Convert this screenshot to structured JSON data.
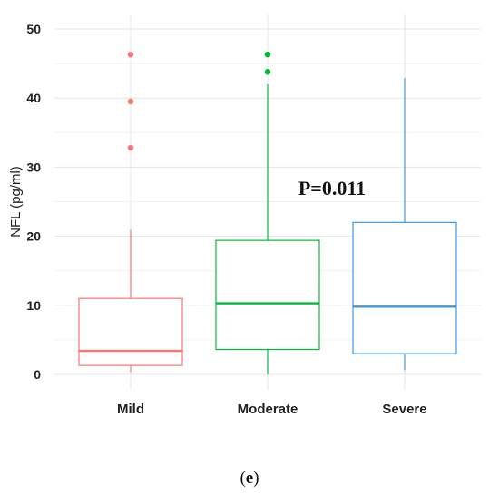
{
  "chart_data": {
    "type": "box",
    "ylabel": "NFL (pg/ml)",
    "xlabel": "",
    "ylim": [
      0,
      50
    ],
    "yticks": [
      0,
      10,
      20,
      30,
      40,
      50
    ],
    "grid": true,
    "categories": [
      "Mild",
      "Moderate",
      "Severe"
    ],
    "series": [
      {
        "category": "Mild",
        "color": "#F8766D",
        "whisker_low": 0.3,
        "q1": 1.3,
        "median": 3.4,
        "q3": 11.0,
        "whisker_high": 21.0,
        "outliers": [
          32.8,
          39.5,
          46.3
        ]
      },
      {
        "category": "Moderate",
        "color": "#00BA38",
        "whisker_low": 0.0,
        "q1": 3.6,
        "median": 10.3,
        "q3": 19.4,
        "whisker_high": 42.0,
        "outliers": [
          43.8,
          46.3
        ]
      },
      {
        "category": "Severe",
        "color": "#3A9AE8",
        "whisker_low": 0.6,
        "q1": 3.0,
        "median": 9.8,
        "q3": 22.0,
        "whisker_high": 42.9,
        "outliers": []
      }
    ],
    "annotation": "P=0.011"
  },
  "caption": {
    "open": "(",
    "letter": "e",
    "close": ")"
  }
}
